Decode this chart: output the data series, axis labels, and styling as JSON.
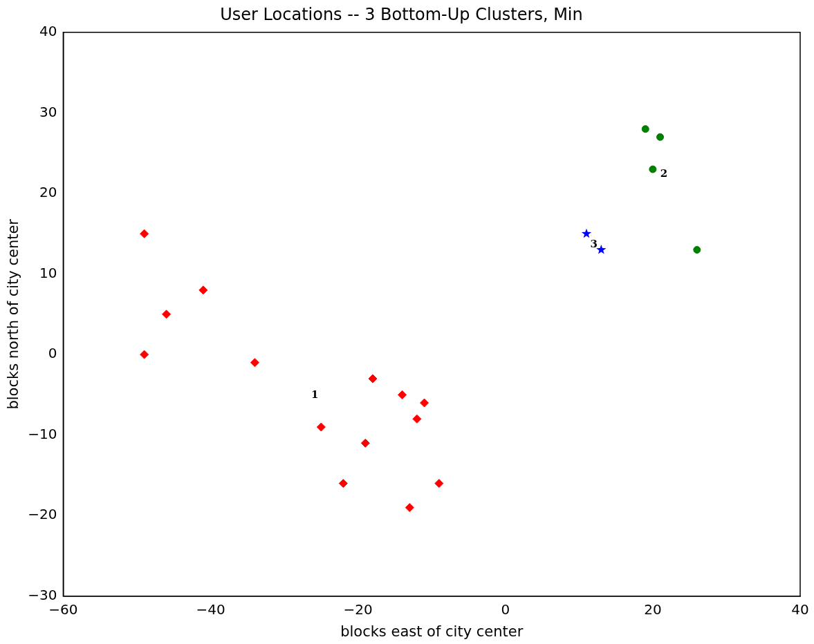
{
  "chart_data": {
    "type": "scatter",
    "title": "User Locations -- 3 Bottom-Up Clusters, Min",
    "xlabel": "blocks east of city center",
    "ylabel": "blocks north of city center",
    "series": [
      {
        "color": "#ff0000",
        "marker": "diamond",
        "x": [
          -14,
          -19,
          -9,
          -49,
          -46,
          -34,
          -49,
          -22,
          -12,
          -13,
          -41,
          -11,
          -25,
          -18
        ],
        "values": [
          -5,
          -11,
          -16,
          15,
          5,
          -1,
          0,
          -16,
          -8,
          -19,
          8,
          -6,
          -9,
          -3
        ]
      },
      {
        "color": "#008000",
        "marker": "circle",
        "x": [
          20,
          21,
          26,
          19
        ],
        "values": [
          23,
          27,
          13,
          28
        ]
      },
      {
        "color": "#0000ff",
        "marker": "star",
        "x": [
          13,
          11
        ],
        "values": [
          13,
          15
        ]
      }
    ],
    "annotations": [
      "1",
      "2",
      "3"
    ],
    "xlim": [
      -60,
      40
    ],
    "xticks": [
      -60,
      -40,
      -20,
      0,
      20,
      40
    ],
    "ylim": [
      -30,
      40
    ],
    "yticks": [
      -30,
      -20,
      -10,
      0,
      10,
      20,
      30,
      40
    ],
    "grid": false,
    "legend": false
  }
}
